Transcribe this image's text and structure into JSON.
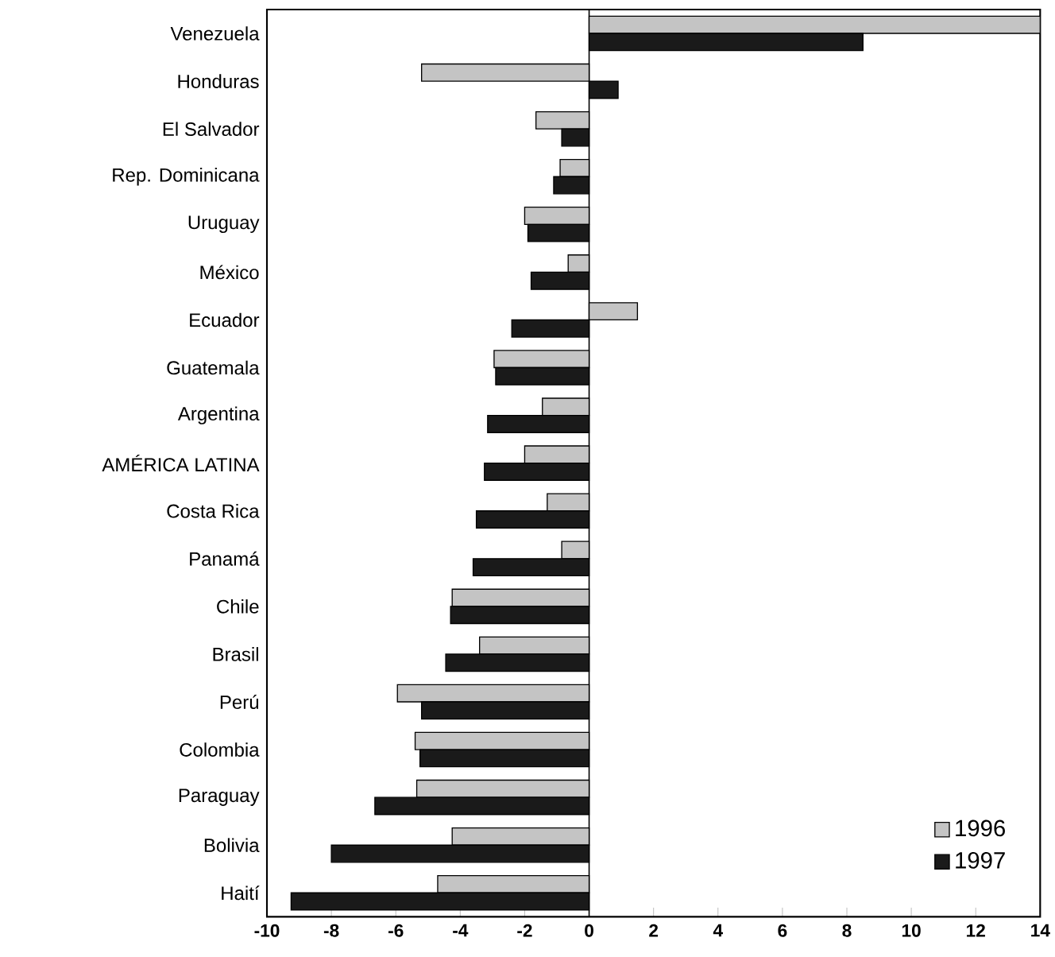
{
  "chart_data": {
    "type": "bar",
    "orientation": "horizontal",
    "categories": [
      "Venezuela",
      "Honduras",
      "El Salvador",
      "Rep. Dominicana",
      "Uruguay",
      "México",
      "Ecuador",
      "Guatemala",
      "Argentina",
      "AMÉRICA LATINA",
      "Costa Rica",
      "Panamá",
      "Chile",
      "Brasil",
      "Perú",
      "Colombia",
      "Paraguay",
      "Bolivia",
      "Haití"
    ],
    "series": [
      {
        "name": "1996",
        "color": "#c4c4c4",
        "values": [
          14.0,
          -5.2,
          -1.65,
          -0.9,
          -2.0,
          -0.65,
          1.5,
          -2.95,
          -1.45,
          -2.0,
          -1.3,
          -0.85,
          -4.25,
          -3.4,
          -5.95,
          -5.4,
          -5.35,
          -4.25,
          -4.7
        ]
      },
      {
        "name": "1997",
        "color": "#1a1a1a",
        "values": [
          8.5,
          0.9,
          -0.85,
          -1.1,
          -1.9,
          -1.8,
          -2.4,
          -2.9,
          -3.15,
          -3.25,
          -3.5,
          -3.6,
          -4.3,
          -4.45,
          -5.2,
          -5.25,
          -6.65,
          -8.0,
          -9.25
        ]
      }
    ],
    "xlim": [
      -10,
      14
    ],
    "xticks": [
      -10,
      -8,
      -6,
      -4,
      -2,
      0,
      2,
      4,
      6,
      8,
      10,
      12,
      14
    ],
    "legend": "bottom right"
  }
}
